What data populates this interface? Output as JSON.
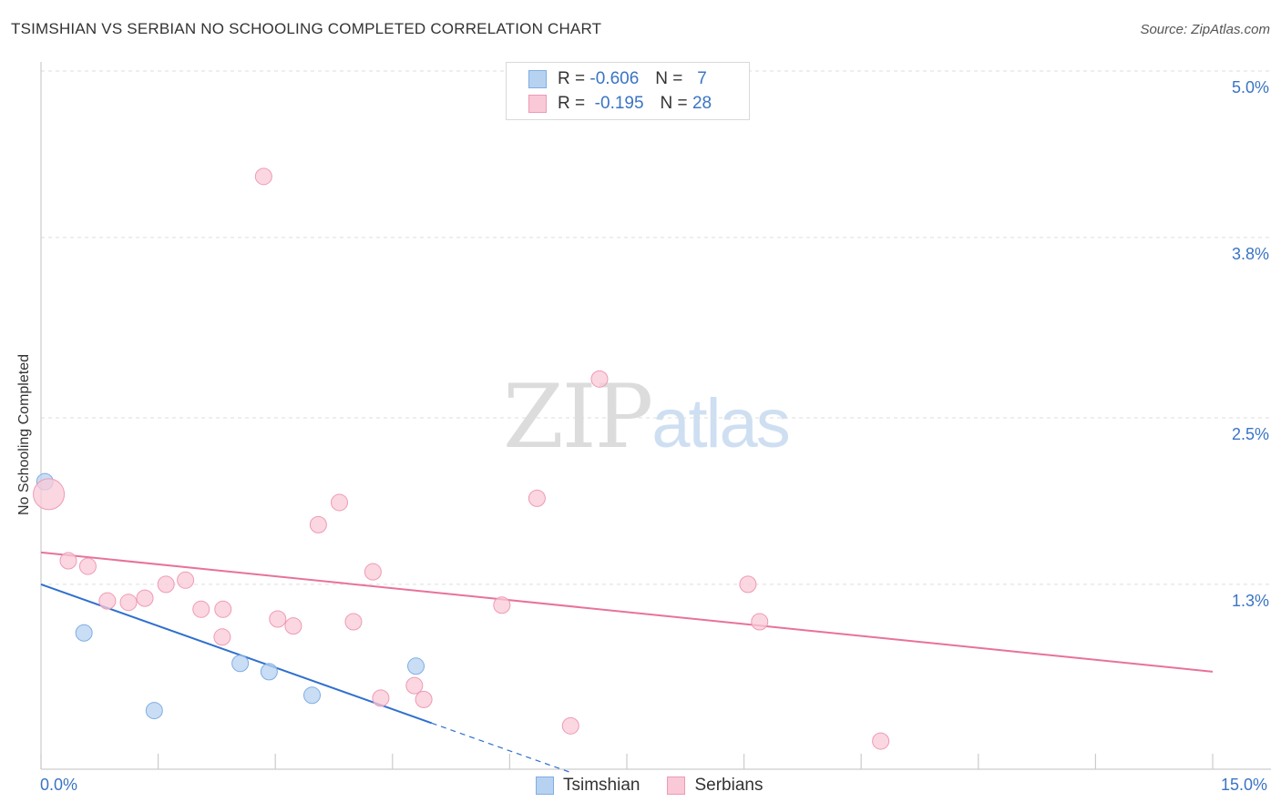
{
  "header": {
    "title": "TSIMSHIAN VS SERBIAN NO SCHOOLING COMPLETED CORRELATION CHART",
    "source": "Source: ZipAtlas.com"
  },
  "watermark": {
    "part1": "ZIP",
    "part2": "atlas"
  },
  "legend_top": {
    "rows": [
      {
        "r_label": "R =",
        "r_value": "-0.606",
        "n_label": "N =",
        "n_value": "7",
        "color": "#b7d2f1",
        "border": "#7faee2"
      },
      {
        "r_label": "R =",
        "r_value": "-0.195",
        "n_label": "N =",
        "n_value": "28",
        "color": "#f9c9d7",
        "border": "#ef9ab4"
      }
    ]
  },
  "legend_bottom": {
    "items": [
      {
        "label": "Tsimshian",
        "color": "#b7d2f1",
        "border": "#7faee2"
      },
      {
        "label": "Serbians",
        "color": "#f9c9d7",
        "border": "#ef9ab4"
      }
    ]
  },
  "chart_data": {
    "type": "scatter",
    "title": "TSIMSHIAN VS SERBIAN NO SCHOOLING COMPLETED CORRELATION CHART",
    "xlabel": "",
    "ylabel": "No Schooling Completed",
    "xlim": [
      0,
      15
    ],
    "ylim": [
      0,
      5.15
    ],
    "x_tick_labels": [
      "0.0%",
      "15.0%"
    ],
    "y_ticks": [
      {
        "value": 1.3,
        "label": "1.3%"
      },
      {
        "value": 2.5,
        "label": "2.5%"
      },
      {
        "value": 3.8,
        "label": "3.8%"
      },
      {
        "value": 5.0,
        "label": "5.0%"
      }
    ],
    "series": [
      {
        "name": "Tsimshian",
        "color": "#7faee2",
        "fill": "#b7d2f1",
        "line_color": "#2f6fcf",
        "trend": {
          "x0": 0,
          "y0": 1.3,
          "x1": 5.0,
          "y1": 0.3,
          "dash_to_x": 6.8
        },
        "points": [
          {
            "x": 0.05,
            "y": 2.04,
            "size": 9
          },
          {
            "x": 0.55,
            "y": 0.95,
            "size": 9
          },
          {
            "x": 1.45,
            "y": 0.39,
            "size": 9
          },
          {
            "x": 2.55,
            "y": 0.73,
            "size": 9
          },
          {
            "x": 2.92,
            "y": 0.67,
            "size": 9
          },
          {
            "x": 3.47,
            "y": 0.5,
            "size": 9
          },
          {
            "x": 4.8,
            "y": 0.71,
            "size": 9
          }
        ]
      },
      {
        "name": "Serbians",
        "color": "#ef9ab4",
        "fill": "#f9c9d7",
        "line_color": "#e8729a",
        "trend": {
          "x0": 0,
          "y0": 1.53,
          "x1": 15.0,
          "y1": 0.67
        },
        "points": [
          {
            "x": 0.1,
            "y": 1.95,
            "size": 17
          },
          {
            "x": 0.35,
            "y": 1.47,
            "size": 9
          },
          {
            "x": 0.6,
            "y": 1.43,
            "size": 9
          },
          {
            "x": 0.85,
            "y": 1.18,
            "size": 9
          },
          {
            "x": 1.12,
            "y": 1.17,
            "size": 9
          },
          {
            "x": 1.33,
            "y": 1.2,
            "size": 9
          },
          {
            "x": 1.6,
            "y": 1.3,
            "size": 9
          },
          {
            "x": 1.85,
            "y": 1.33,
            "size": 9
          },
          {
            "x": 2.05,
            "y": 1.12,
            "size": 9
          },
          {
            "x": 2.32,
            "y": 0.92,
            "size": 9
          },
          {
            "x": 2.33,
            "y": 1.12,
            "size": 9
          },
          {
            "x": 2.85,
            "y": 4.24,
            "size": 9
          },
          {
            "x": 3.03,
            "y": 1.05,
            "size": 9
          },
          {
            "x": 3.23,
            "y": 1.0,
            "size": 9
          },
          {
            "x": 3.55,
            "y": 1.73,
            "size": 9
          },
          {
            "x": 3.82,
            "y": 1.89,
            "size": 9
          },
          {
            "x": 4.0,
            "y": 1.03,
            "size": 9
          },
          {
            "x": 4.25,
            "y": 1.39,
            "size": 9
          },
          {
            "x": 4.35,
            "y": 0.48,
            "size": 9
          },
          {
            "x": 4.78,
            "y": 0.57,
            "size": 9
          },
          {
            "x": 4.9,
            "y": 0.47,
            "size": 9
          },
          {
            "x": 5.9,
            "y": 1.15,
            "size": 9
          },
          {
            "x": 6.35,
            "y": 1.92,
            "size": 9
          },
          {
            "x": 6.78,
            "y": 0.28,
            "size": 9
          },
          {
            "x": 7.15,
            "y": 2.78,
            "size": 9
          },
          {
            "x": 9.05,
            "y": 1.3,
            "size": 9
          },
          {
            "x": 9.2,
            "y": 1.03,
            "size": 9
          },
          {
            "x": 10.75,
            "y": 0.17,
            "size": 9
          }
        ]
      }
    ]
  }
}
